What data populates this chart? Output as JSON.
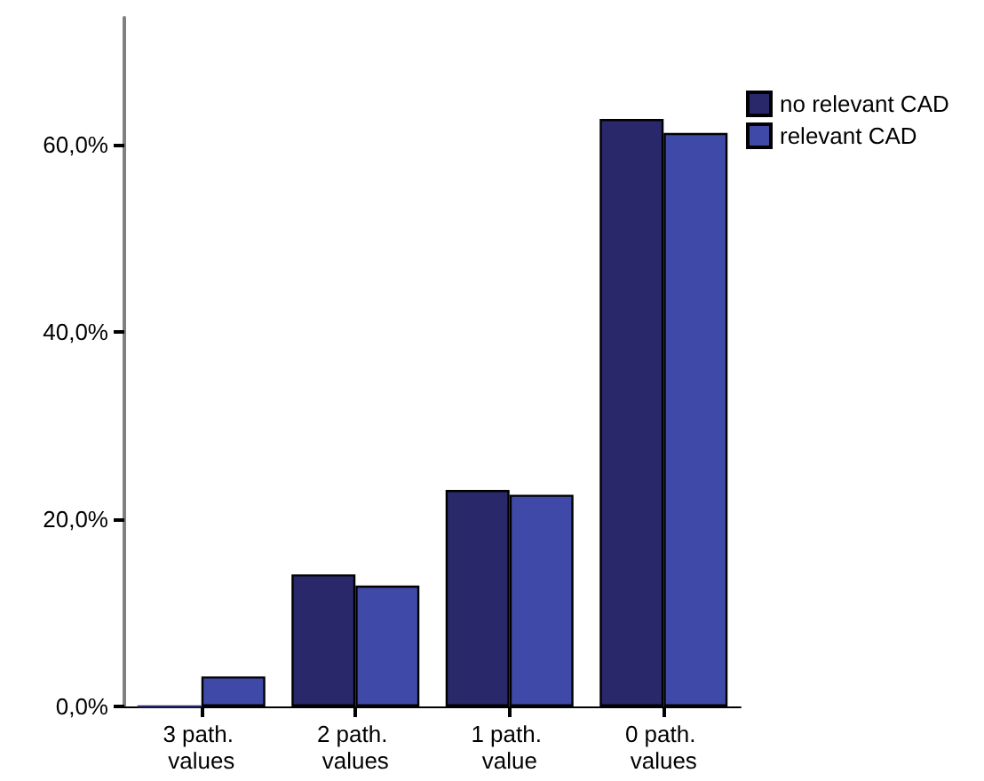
{
  "chart_data": {
    "type": "bar",
    "categories": [
      "3 path. values",
      "2 path. values",
      "1 path. value",
      "0 path. values"
    ],
    "series": [
      {
        "name": "no relevant CAD",
        "color": "#29286b",
        "values": [
          0,
          14.1,
          23.1,
          62.7
        ]
      },
      {
        "name": "relevant CAD",
        "color": "#3f4aa8",
        "values": [
          3.2,
          12.9,
          22.6,
          61.2
        ]
      }
    ],
    "ylim": [
      0,
      73.5
    ],
    "yticks": [
      {
        "value": 0,
        "label": "0,0%"
      },
      {
        "value": 20,
        "label": "20,0%"
      },
      {
        "value": 40,
        "label": "40,0%"
      },
      {
        "value": 60,
        "label": "60,0%"
      }
    ],
    "grid": false,
    "legend": "top right"
  }
}
